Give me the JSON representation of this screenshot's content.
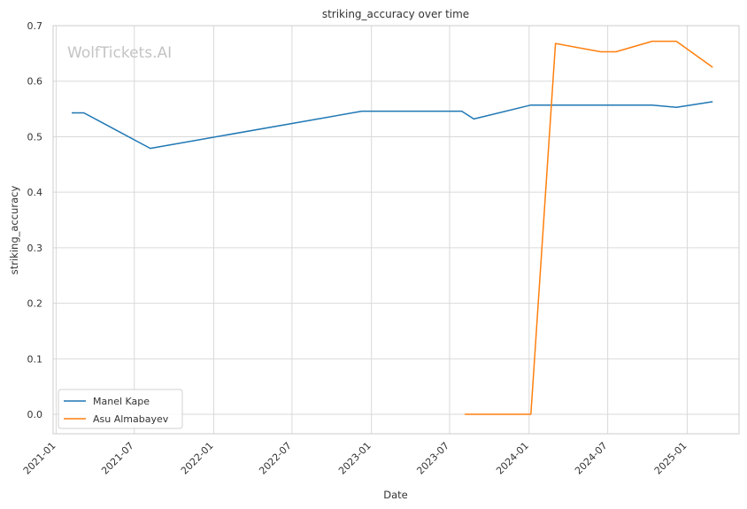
{
  "chart_data": {
    "type": "line",
    "title": "striking_accuracy over time",
    "xlabel": "Date",
    "ylabel": "striking_accuracy",
    "watermark": "WolfTickets.AI",
    "xlim": [
      "2020-12-25",
      "2025-05-01"
    ],
    "ylim": [
      -0.035,
      0.7
    ],
    "x_ticks": [
      "2021-01",
      "2021-07",
      "2022-01",
      "2022-07",
      "2023-01",
      "2023-07",
      "2024-01",
      "2024-07",
      "2025-01"
    ],
    "y_ticks": [
      0.0,
      0.1,
      0.2,
      0.3,
      0.4,
      0.5,
      0.6,
      0.7
    ],
    "y_tick_labels": [
      "0.0",
      "0.1",
      "0.2",
      "0.3",
      "0.4",
      "0.5",
      "0.6",
      "0.7"
    ],
    "grid": true,
    "legend_position": "lower-left",
    "colors": {
      "Manel Kape": "#1f77b4",
      "Asu Almabayev": "#ff7f0e",
      "grid": "#d9d9d9",
      "frame": "#cccccc"
    },
    "series": [
      {
        "name": "Manel Kape",
        "color": "#1f77b4",
        "points": [
          [
            "2021-02-06",
            0.543
          ],
          [
            "2021-03-06",
            0.543
          ],
          [
            "2021-08-07",
            0.479
          ],
          [
            "2022-12-10",
            0.546
          ],
          [
            "2023-07-29",
            0.546
          ],
          [
            "2023-08-26",
            0.532
          ],
          [
            "2024-01-05",
            0.557
          ],
          [
            "2024-10-12",
            0.557
          ],
          [
            "2024-12-07",
            0.553
          ],
          [
            "2025-03-01",
            0.563
          ]
        ]
      },
      {
        "name": "Asu Almabayev",
        "color": "#ff7f0e",
        "points": [
          [
            "2023-08-05",
            0.0
          ],
          [
            "2024-01-05",
            0.0
          ],
          [
            "2024-03-02",
            0.668
          ],
          [
            "2024-06-15",
            0.653
          ],
          [
            "2024-07-20",
            0.653
          ],
          [
            "2024-10-12",
            0.672
          ],
          [
            "2024-12-07",
            0.672
          ],
          [
            "2025-03-01",
            0.625
          ]
        ]
      }
    ]
  }
}
